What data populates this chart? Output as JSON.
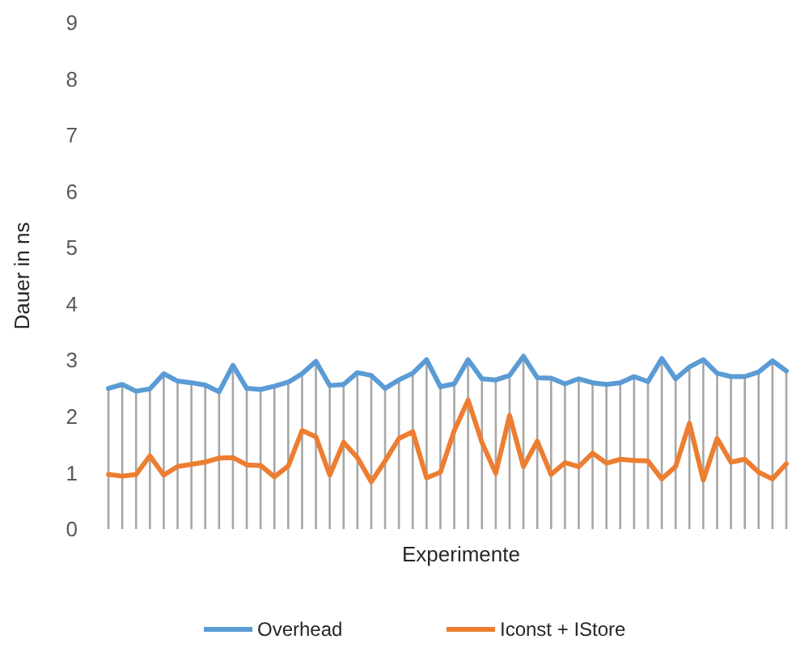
{
  "chart_data": {
    "type": "line",
    "xlabel": "Experimente",
    "ylabel": "Dauer in ns",
    "categories": [
      null,
      null,
      null,
      null,
      null,
      null,
      null,
      null,
      null,
      null,
      null,
      null,
      null,
      null,
      null,
      null,
      null,
      null,
      null,
      null,
      null,
      null,
      null,
      null,
      null,
      null,
      null,
      null,
      null,
      null,
      null,
      null,
      null,
      null,
      null,
      null,
      null,
      null,
      null,
      null,
      null,
      null,
      null,
      null,
      null,
      null,
      null,
      null,
      null,
      null
    ],
    "ylim": [
      0,
      9
    ],
    "yticks": [
      0,
      1,
      2,
      3,
      4,
      5,
      6,
      7,
      8,
      9
    ],
    "grid": false,
    "legend": "bottom",
    "marker": "none",
    "line_style": "solid",
    "series": [
      {
        "name": "Overhead",
        "color": "#5b9bd5",
        "values": [
          2.5,
          2.57,
          2.45,
          2.49,
          2.76,
          2.63,
          2.6,
          2.56,
          2.44,
          2.91,
          2.5,
          2.48,
          2.54,
          2.61,
          2.76,
          2.98,
          2.55,
          2.57,
          2.78,
          2.73,
          2.5,
          2.65,
          2.77,
          3.01,
          2.53,
          2.58,
          3.01,
          2.67,
          2.65,
          2.73,
          3.07,
          2.69,
          2.68,
          2.58,
          2.67,
          2.6,
          2.57,
          2.6,
          2.71,
          2.62,
          3.03,
          2.67,
          2.88,
          3.01,
          2.77,
          2.71,
          2.71,
          2.79,
          2.99,
          2.81
        ]
      },
      {
        "name": "Iconst + IStore",
        "color": "#ed7d31",
        "values": [
          0.97,
          0.94,
          0.97,
          1.3,
          0.96,
          1.11,
          1.15,
          1.19,
          1.26,
          1.27,
          1.14,
          1.13,
          0.93,
          1.12,
          1.75,
          1.64,
          0.96,
          1.54,
          1.27,
          0.84,
          1.21,
          1.61,
          1.73,
          0.91,
          1.01,
          1.75,
          2.29,
          1.54,
          0.99,
          2.02,
          1.11,
          1.56,
          0.97,
          1.18,
          1.11,
          1.35,
          1.17,
          1.24,
          1.22,
          1.21,
          0.89,
          1.11,
          1.88,
          0.87,
          1.61,
          1.19,
          1.24,
          1.01,
          0.89,
          1.16
        ]
      }
    ]
  }
}
